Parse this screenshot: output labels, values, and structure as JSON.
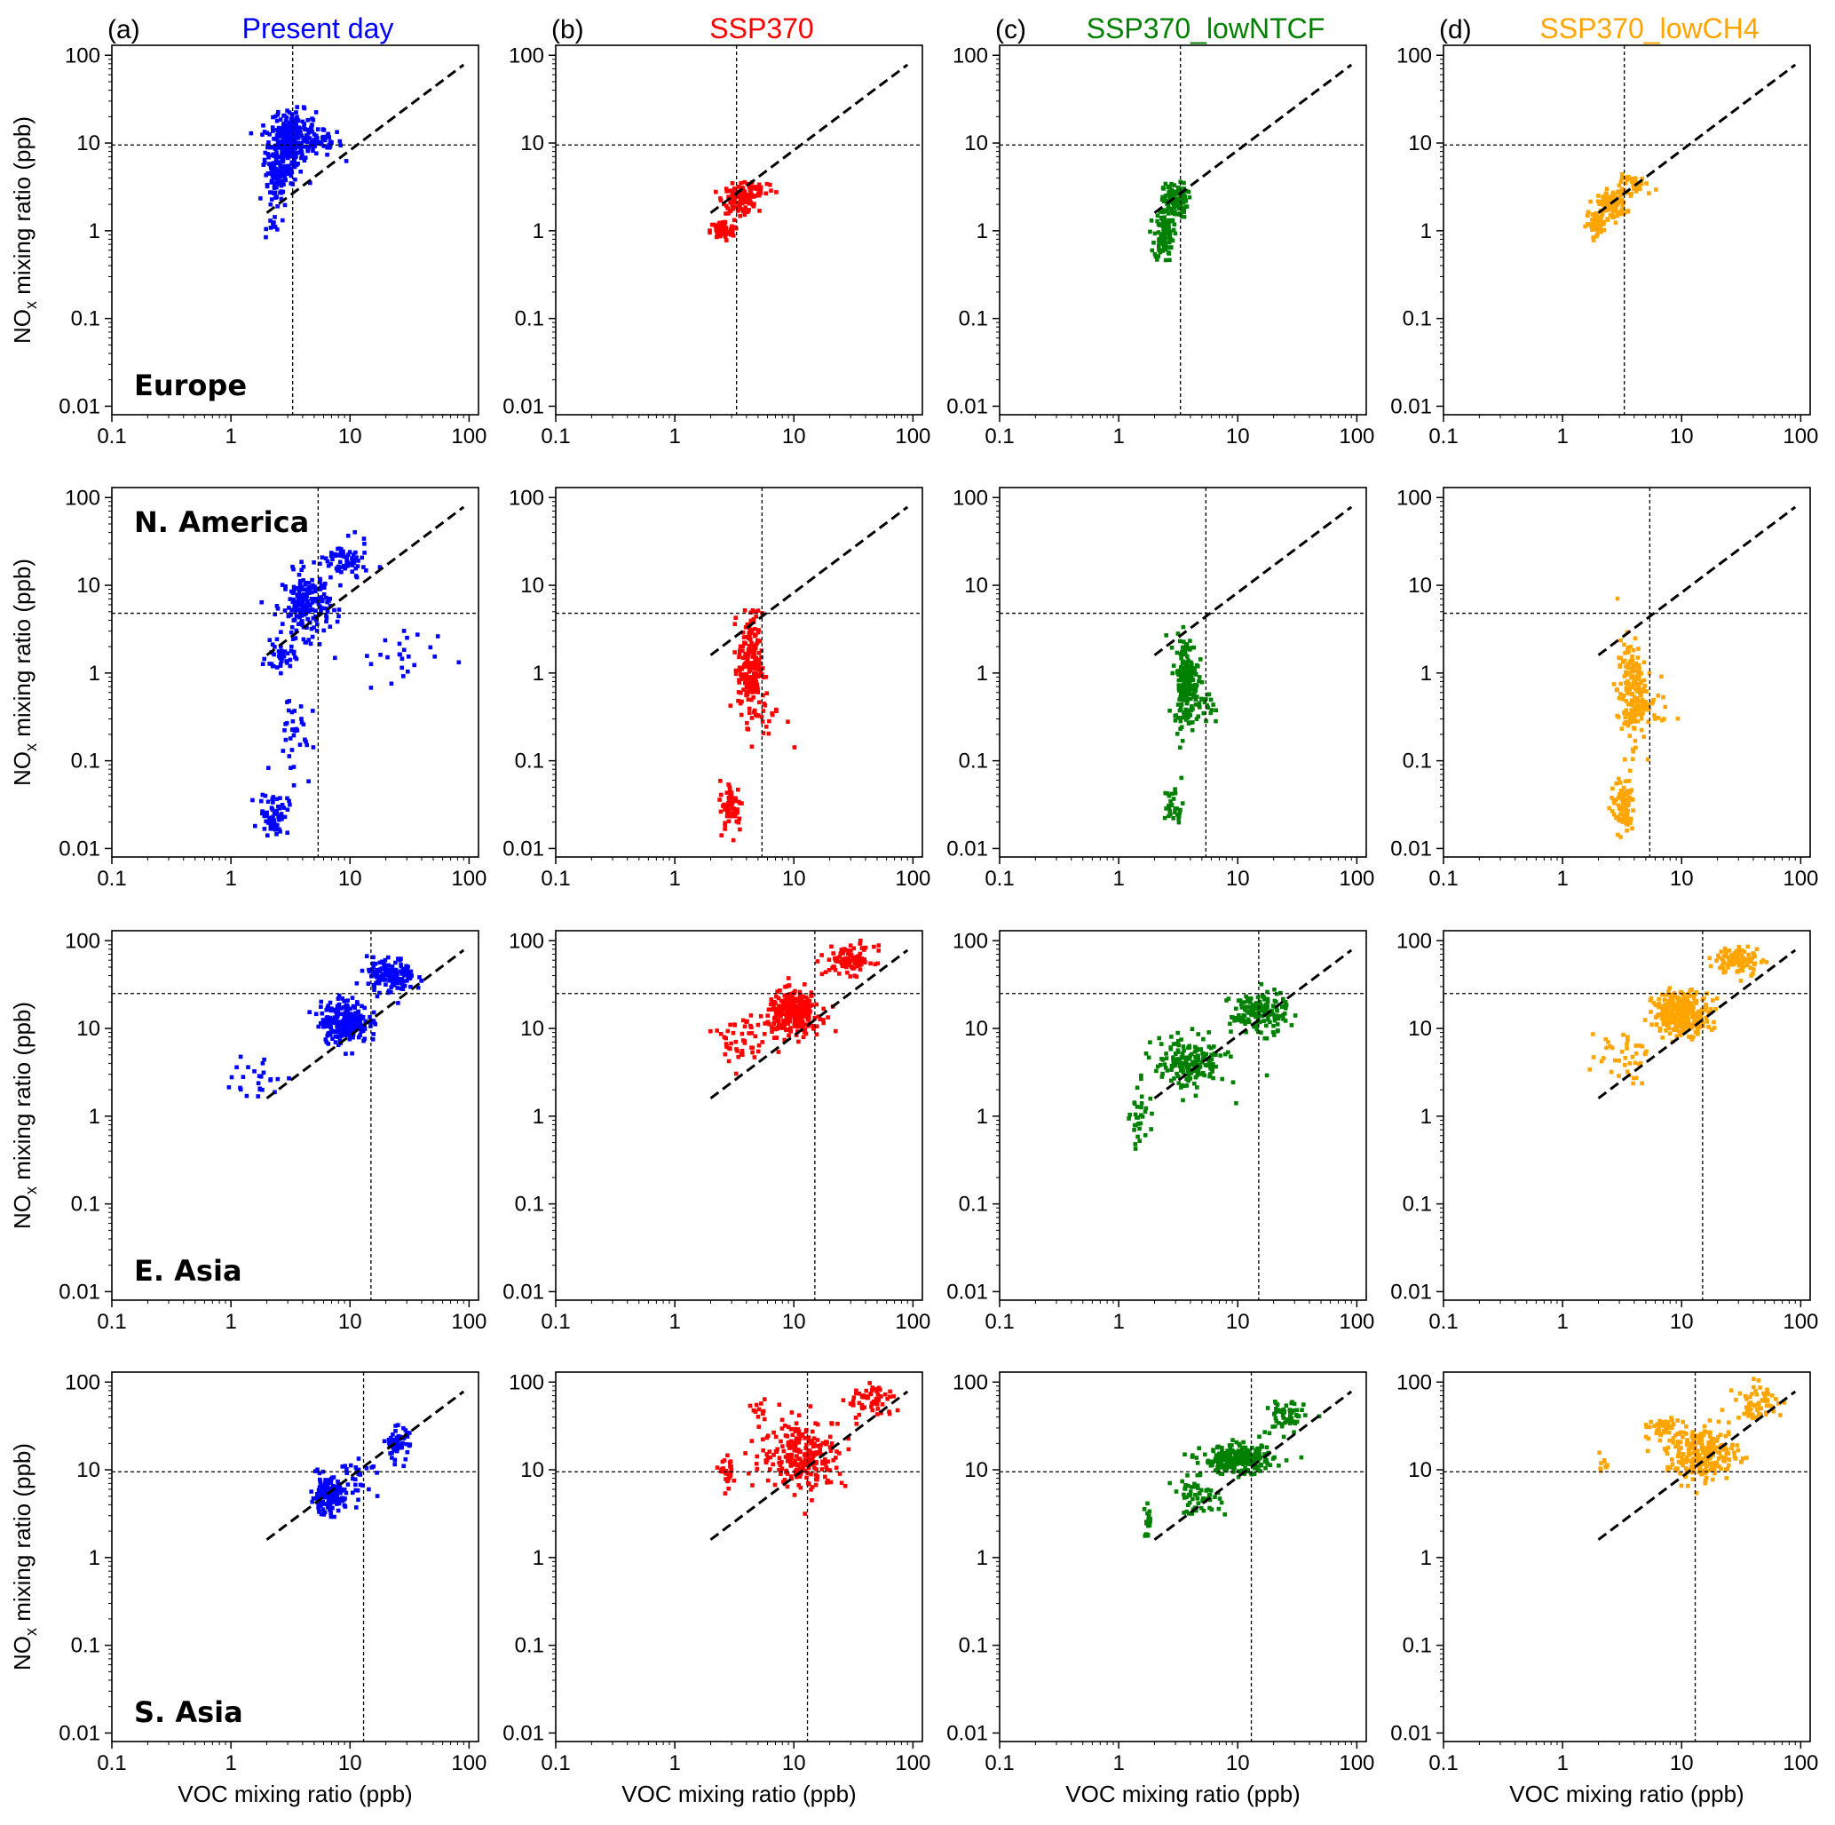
{
  "figure": {
    "columns": [
      {
        "letter": "(a)",
        "title": "Present day",
        "color": "#0000ff"
      },
      {
        "letter": "(b)",
        "title": "SSP370",
        "color": "#ff0000"
      },
      {
        "letter": "(c)",
        "title": "SSP370_lowNTCF",
        "color": "#008000"
      },
      {
        "letter": "(d)",
        "title": "SSP370_lowCH4",
        "color": "#ffa500"
      }
    ],
    "rows": [
      {
        "region": "Europe",
        "region_position": "bottom-left"
      },
      {
        "region": "N. America",
        "region_position": "top-left"
      },
      {
        "region": "E. Asia",
        "region_position": "bottom-left"
      },
      {
        "region": "S. Asia",
        "region_position": "bottom-left"
      }
    ],
    "xlabel": "VOC mixing ratio (ppb)",
    "ylabel_main": "NO",
    "ylabel_sub": "x",
    "ylabel_rest": " mixing ratio (ppb)"
  },
  "chart_data": {
    "type": "scatter",
    "xscale": "log",
    "yscale": "log",
    "xlim": [
      0.1,
      120
    ],
    "ylim": [
      0.008,
      130
    ],
    "xticks": [
      0.1,
      1,
      10,
      100
    ],
    "xtick_labels": [
      "0.1",
      "1",
      "10",
      "100"
    ],
    "yticks": [
      0.01,
      0.1,
      1,
      10,
      100
    ],
    "ytick_labels": [
      "0.01",
      "0.1",
      "1",
      "10",
      "100"
    ],
    "diagonal_line": {
      "style": "dashed",
      "x": [
        2,
        90
      ],
      "y": [
        1.6,
        78
      ]
    },
    "threshold_lines": [
      {
        "region": "Europe",
        "voc": 3.3,
        "nox": 9.5
      },
      {
        "region": "N. America",
        "voc": 5.4,
        "nox": 4.8
      },
      {
        "region": "E. Asia",
        "voc": 15,
        "nox": 25
      },
      {
        "region": "S. Asia",
        "voc": 13,
        "nox": 9.5
      }
    ],
    "clusters": [
      [
        [
          {
            "x": 2.8,
            "y": 8,
            "sx": 0.08,
            "sy": 0.18,
            "n": 220
          },
          {
            "x": 3.4,
            "y": 15,
            "sx": 0.09,
            "sy": 0.1,
            "n": 90
          },
          {
            "x": 5,
            "y": 10,
            "sx": 0.12,
            "sy": 0.08,
            "n": 80
          },
          {
            "x": 2.4,
            "y": 3,
            "sx": 0.05,
            "sy": 0.12,
            "n": 50
          },
          {
            "x": 2.3,
            "y": 1.2,
            "sx": 0.03,
            "sy": 0.06,
            "n": 12
          }
        ],
        [
          {
            "x": 3.5,
            "y": 2.3,
            "sx": 0.07,
            "sy": 0.08,
            "n": 110
          },
          {
            "x": 2.5,
            "y": 1,
            "sx": 0.05,
            "sy": 0.06,
            "n": 70
          },
          {
            "x": 4.8,
            "y": 3,
            "sx": 0.08,
            "sy": 0.06,
            "n": 35
          }
        ],
        [
          {
            "x": 2.4,
            "y": 0.9,
            "sx": 0.04,
            "sy": 0.15,
            "n": 100
          },
          {
            "x": 3,
            "y": 2.2,
            "sx": 0.05,
            "sy": 0.1,
            "n": 110
          }
        ],
        [
          {
            "x": 2.6,
            "y": 2,
            "sx": 0.06,
            "sy": 0.08,
            "n": 110
          },
          {
            "x": 1.9,
            "y": 1.2,
            "sx": 0.04,
            "sy": 0.06,
            "n": 55
          },
          {
            "x": 4.2,
            "y": 3.3,
            "sx": 0.09,
            "sy": 0.06,
            "n": 35
          }
        ]
      ],
      [
        [
          {
            "x": 4.3,
            "y": 6,
            "sx": 0.1,
            "sy": 0.18,
            "n": 200
          },
          {
            "x": 9,
            "y": 18,
            "sx": 0.1,
            "sy": 0.12,
            "n": 70
          },
          {
            "x": 2.6,
            "y": 1.5,
            "sx": 0.06,
            "sy": 0.08,
            "n": 40
          },
          {
            "x": 2.3,
            "y": 0.025,
            "sx": 0.06,
            "sy": 0.12,
            "n": 70
          },
          {
            "x": 3.3,
            "y": 0.2,
            "sx": 0.08,
            "sy": 0.25,
            "n": 35
          },
          {
            "x": 22,
            "y": 1.5,
            "sx": 0.2,
            "sy": 0.2,
            "n": 25
          }
        ],
        [
          {
            "x": 4.3,
            "y": 1.2,
            "sx": 0.05,
            "sy": 0.3,
            "n": 200
          },
          {
            "x": 3,
            "y": 0.03,
            "sx": 0.05,
            "sy": 0.15,
            "n": 60
          },
          {
            "x": 6,
            "y": 0.3,
            "sx": 0.08,
            "sy": 0.15,
            "n": 20
          }
        ],
        [
          {
            "x": 3.7,
            "y": 0.8,
            "sx": 0.05,
            "sy": 0.25,
            "n": 200
          },
          {
            "x": 2.9,
            "y": 0.03,
            "sx": 0.04,
            "sy": 0.12,
            "n": 30
          },
          {
            "x": 5.5,
            "y": 0.4,
            "sx": 0.06,
            "sy": 0.1,
            "n": 20
          }
        ],
        [
          {
            "x": 3.8,
            "y": 0.6,
            "sx": 0.06,
            "sy": 0.3,
            "n": 180
          },
          {
            "x": 3.2,
            "y": 0.03,
            "sx": 0.05,
            "sy": 0.15,
            "n": 90
          },
          {
            "x": 6,
            "y": 0.4,
            "sx": 0.08,
            "sy": 0.15,
            "n": 20
          }
        ]
      ],
      [
        [
          {
            "x": 9,
            "y": 12,
            "sx": 0.1,
            "sy": 0.12,
            "n": 250
          },
          {
            "x": 22,
            "y": 40,
            "sx": 0.1,
            "sy": 0.1,
            "n": 150
          },
          {
            "x": 1.6,
            "y": 2.5,
            "sx": 0.12,
            "sy": 0.15,
            "n": 25
          }
        ],
        [
          {
            "x": 10,
            "y": 15,
            "sx": 0.11,
            "sy": 0.12,
            "n": 300
          },
          {
            "x": 30,
            "y": 60,
            "sx": 0.1,
            "sy": 0.08,
            "n": 100
          },
          {
            "x": 3.5,
            "y": 7,
            "sx": 0.12,
            "sy": 0.15,
            "n": 50
          }
        ],
        [
          {
            "x": 4,
            "y": 4,
            "sx": 0.15,
            "sy": 0.15,
            "n": 180
          },
          {
            "x": 15,
            "y": 15,
            "sx": 0.12,
            "sy": 0.12,
            "n": 150
          },
          {
            "x": 1.5,
            "y": 0.9,
            "sx": 0.04,
            "sy": 0.15,
            "n": 30
          }
        ],
        [
          {
            "x": 10,
            "y": 15,
            "sx": 0.12,
            "sy": 0.12,
            "n": 300
          },
          {
            "x": 30,
            "y": 60,
            "sx": 0.1,
            "sy": 0.08,
            "n": 100
          },
          {
            "x": 3,
            "y": 5,
            "sx": 0.12,
            "sy": 0.15,
            "n": 40
          }
        ]
      ],
      [
        [
          {
            "x": 6.5,
            "y": 5,
            "sx": 0.07,
            "sy": 0.1,
            "n": 160
          },
          {
            "x": 25,
            "y": 20,
            "sx": 0.05,
            "sy": 0.1,
            "n": 60
          },
          {
            "x": 12,
            "y": 8,
            "sx": 0.08,
            "sy": 0.1,
            "n": 30
          }
        ],
        [
          {
            "x": 12,
            "y": 15,
            "sx": 0.18,
            "sy": 0.2,
            "n": 250
          },
          {
            "x": 45,
            "y": 60,
            "sx": 0.1,
            "sy": 0.1,
            "n": 60
          },
          {
            "x": 2.8,
            "y": 9,
            "sx": 0.03,
            "sy": 0.08,
            "n": 30
          },
          {
            "x": 5,
            "y": 50,
            "sx": 0.03,
            "sy": 0.05,
            "n": 12
          }
        ],
        [
          {
            "x": 10,
            "y": 13,
            "sx": 0.15,
            "sy": 0.08,
            "n": 250
          },
          {
            "x": 25,
            "y": 40,
            "sx": 0.08,
            "sy": 0.1,
            "n": 60
          },
          {
            "x": 4.5,
            "y": 5,
            "sx": 0.1,
            "sy": 0.1,
            "n": 60
          },
          {
            "x": 1.8,
            "y": 2.5,
            "sx": 0.03,
            "sy": 0.1,
            "n": 20
          }
        ],
        [
          {
            "x": 15,
            "y": 15,
            "sx": 0.15,
            "sy": 0.15,
            "n": 250
          },
          {
            "x": 45,
            "y": 60,
            "sx": 0.1,
            "sy": 0.1,
            "n": 60
          },
          {
            "x": 6.5,
            "y": 30,
            "sx": 0.08,
            "sy": 0.05,
            "n": 40
          },
          {
            "x": 2.2,
            "y": 12,
            "sx": 0.03,
            "sy": 0.05,
            "n": 10
          }
        ]
      ]
    ]
  }
}
